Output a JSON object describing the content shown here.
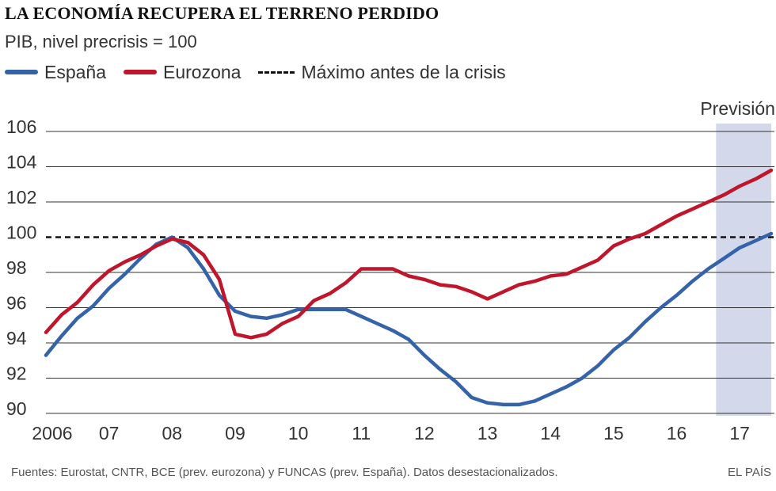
{
  "chart_data": {
    "type": "line",
    "title": "LA ECONOMÍA RECUPERA EL TERRENO PERDIDO",
    "subtitle": "PIB, nivel precrisis = 100",
    "ylim": [
      90,
      106
    ],
    "yticks": [
      90,
      92,
      94,
      96,
      98,
      100,
      102,
      104,
      106
    ],
    "xlim": [
      2006.0,
      2017.55
    ],
    "xticks": [
      {
        "label": "2006",
        "x": 2006.1
      },
      {
        "label": "07",
        "x": 2007.0
      },
      {
        "label": "08",
        "x": 2008.0
      },
      {
        "label": "09",
        "x": 2009.0
      },
      {
        "label": "10",
        "x": 2010.0
      },
      {
        "label": "11",
        "x": 2011.0
      },
      {
        "label": "12",
        "x": 2012.0
      },
      {
        "label": "13",
        "x": 2013.0
      },
      {
        "label": "14",
        "x": 2014.0
      },
      {
        "label": "15",
        "x": 2015.0
      },
      {
        "label": "16",
        "x": 2016.0
      },
      {
        "label": "17",
        "x": 2017.0
      }
    ],
    "reference_line": {
      "name": "Máximo antes de la crisis",
      "value": 100
    },
    "forecast": {
      "label": "Previsión",
      "from": 2016.625,
      "to": 2017.5
    },
    "series": [
      {
        "name": "España",
        "color": "#3563a9",
        "x": [
          2006.0,
          2006.25,
          2006.5,
          2006.75,
          2007.0,
          2007.25,
          2007.5,
          2007.75,
          2008.0,
          2008.25,
          2008.5,
          2008.75,
          2009.0,
          2009.25,
          2009.5,
          2009.75,
          2010.0,
          2010.25,
          2010.5,
          2010.75,
          2011.0,
          2011.25,
          2011.5,
          2011.75,
          2012.0,
          2012.25,
          2012.5,
          2012.75,
          2013.0,
          2013.25,
          2013.5,
          2013.75,
          2014.0,
          2014.25,
          2014.5,
          2014.75,
          2015.0,
          2015.25,
          2015.5,
          2015.75,
          2016.0,
          2016.25,
          2016.5,
          2016.75,
          2017.0,
          2017.25,
          2017.5
        ],
        "values": [
          93.3,
          94.4,
          95.4,
          96.1,
          97.1,
          97.9,
          98.8,
          99.6,
          100.0,
          99.4,
          98.2,
          96.7,
          95.8,
          95.5,
          95.4,
          95.6,
          95.9,
          95.9,
          95.9,
          95.9,
          95.5,
          95.1,
          94.7,
          94.2,
          93.3,
          92.5,
          91.8,
          90.9,
          90.6,
          90.5,
          90.5,
          90.7,
          91.1,
          91.5,
          92.0,
          92.7,
          93.6,
          94.3,
          95.2,
          96.0,
          96.7,
          97.5,
          98.2,
          98.8,
          99.4,
          99.8,
          100.2
        ]
      },
      {
        "name": "Eurozona",
        "color": "#c0152a",
        "x": [
          2006.0,
          2006.25,
          2006.5,
          2006.75,
          2007.0,
          2007.25,
          2007.5,
          2007.75,
          2008.0,
          2008.25,
          2008.5,
          2008.75,
          2009.0,
          2009.25,
          2009.5,
          2009.75,
          2010.0,
          2010.25,
          2010.5,
          2010.75,
          2011.0,
          2011.25,
          2011.5,
          2011.75,
          2012.0,
          2012.25,
          2012.5,
          2012.75,
          2013.0,
          2013.25,
          2013.5,
          2013.75,
          2014.0,
          2014.25,
          2014.5,
          2014.75,
          2015.0,
          2015.25,
          2015.5,
          2015.75,
          2016.0,
          2016.25,
          2016.5,
          2016.75,
          2017.0,
          2017.25,
          2017.5
        ],
        "values": [
          94.6,
          95.6,
          96.3,
          97.3,
          98.1,
          98.6,
          99.0,
          99.5,
          99.9,
          99.7,
          99.0,
          97.6,
          94.5,
          94.3,
          94.5,
          95.1,
          95.5,
          96.4,
          96.8,
          97.4,
          98.2,
          98.2,
          98.2,
          97.8,
          97.6,
          97.3,
          97.2,
          96.9,
          96.5,
          96.9,
          97.3,
          97.5,
          97.8,
          97.9,
          98.3,
          98.7,
          99.5,
          99.9,
          100.2,
          100.7,
          101.2,
          101.6,
          102.0,
          102.4,
          102.9,
          103.3,
          103.8
        ]
      }
    ]
  },
  "header": {
    "title": "LA ECONOMÍA RECUPERA EL TERRENO PERDIDO",
    "subtitle": "PIB, nivel precrisis = 100"
  },
  "legend": {
    "spain": "España",
    "eurozone": "Eurozona",
    "pre_crisis": "Máximo antes de la crisis"
  },
  "footer": {
    "source": "Fuentes: Eurostat, CNTR, BCE (prev. eurozona) y FUNCAS (prev. España). Datos desestacionalizados.",
    "brand": "EL PAÍS"
  },
  "colors": {
    "spain": "#3563a9",
    "eurozone": "#c0152a",
    "forecast_band": "#d3d9ea",
    "grid": "#333333"
  }
}
